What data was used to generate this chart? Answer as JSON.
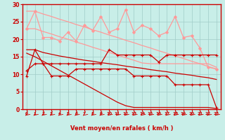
{
  "background_color": "#c8eee8",
  "grid_color": "#a0ccc8",
  "xlabel": "Vent moyen/en rafales ( km/h )",
  "xlabel_color": "#cc0000",
  "tick_color": "#cc0000",
  "x_ticks": [
    0,
    1,
    2,
    3,
    4,
    5,
    6,
    7,
    8,
    9,
    10,
    11,
    12,
    13,
    14,
    15,
    16,
    17,
    18,
    19,
    20,
    21,
    22,
    23
  ],
  "ylim": [
    0,
    30
  ],
  "xlim": [
    -0.5,
    23.5
  ],
  "yticks": [
    0,
    5,
    10,
    15,
    20,
    25,
    30
  ],
  "lines": [
    {
      "name": "light_pink_jagged",
      "color": "#ff9999",
      "lw": 0.9,
      "marker": "D",
      "markersize": 2.0,
      "y": [
        23,
        28,
        20.5,
        20.5,
        19.5,
        22,
        19.5,
        24,
        22.5,
        26.5,
        22,
        23,
        28.5,
        22,
        24,
        23,
        21,
        22,
        26.5,
        20.5,
        21,
        17.5,
        12,
        11.5
      ]
    },
    {
      "name": "light_pink_line_upper",
      "color": "#ff9999",
      "lw": 0.9,
      "marker": null,
      "markersize": 0,
      "y": [
        28,
        28,
        27.2,
        26.5,
        25.7,
        25.0,
        24.2,
        23.5,
        22.7,
        22.0,
        21.2,
        20.5,
        19.7,
        19.0,
        18.2,
        17.5,
        16.7,
        16.0,
        15.2,
        14.5,
        13.7,
        13.0,
        12.2,
        11.5
      ]
    },
    {
      "name": "light_pink_line_lower",
      "color": "#ff9999",
      "lw": 0.9,
      "marker": null,
      "markersize": 0,
      "y": [
        23,
        23,
        22.2,
        21.5,
        20.7,
        20.0,
        19.2,
        18.5,
        17.7,
        17.0,
        16.2,
        15.5,
        14.7,
        14.0,
        13.2,
        13.0,
        13.0,
        13.0,
        13.0,
        13.0,
        13.0,
        13.0,
        13.0,
        12.0
      ]
    },
    {
      "name": "dark_red_jagged_upper",
      "color": "#cc0000",
      "lw": 0.9,
      "marker": "+",
      "markersize": 3.5,
      "y": [
        9.5,
        17,
        13,
        13,
        13,
        13,
        13,
        13,
        13,
        13,
        17,
        15.5,
        15.5,
        15.5,
        15.5,
        15.5,
        13.5,
        15.5,
        15.5,
        15.5,
        15.5,
        15.5,
        15.5,
        15.5
      ]
    },
    {
      "name": "dark_red_straight_upper",
      "color": "#cc0000",
      "lw": 0.9,
      "marker": null,
      "markersize": 0,
      "y": [
        17,
        17,
        16.2,
        15.7,
        15.2,
        14.8,
        14.4,
        14.0,
        13.7,
        13.3,
        13.0,
        12.7,
        12.3,
        12.0,
        11.7,
        11.3,
        11.0,
        10.7,
        10.3,
        10.0,
        9.7,
        9.3,
        9.0,
        8.5
      ]
    },
    {
      "name": "dark_red_jagged_lower",
      "color": "#cc0000",
      "lw": 0.9,
      "marker": "+",
      "markersize": 3.5,
      "y": [
        11,
        13,
        13,
        9.5,
        9.5,
        9.5,
        11.5,
        11.5,
        11.5,
        11.5,
        11.5,
        11.5,
        11.5,
        9.5,
        9.5,
        9.5,
        9.5,
        9.5,
        7.0,
        7.0,
        7.0,
        7.0,
        7.0,
        0.5
      ]
    },
    {
      "name": "dark_red_straight_lower",
      "color": "#cc0000",
      "lw": 0.9,
      "marker": null,
      "markersize": 0,
      "y": [
        16,
        15,
        13.7,
        12.4,
        11.1,
        9.8,
        8.5,
        7.2,
        5.9,
        4.6,
        3.3,
        2.0,
        1.0,
        0.5,
        0.5,
        0.5,
        0.5,
        0.5,
        0.5,
        0.5,
        0.5,
        0.5,
        0.5,
        0.2
      ]
    }
  ],
  "arrow_color": "#cc0000",
  "spine_color": "#cc0000"
}
